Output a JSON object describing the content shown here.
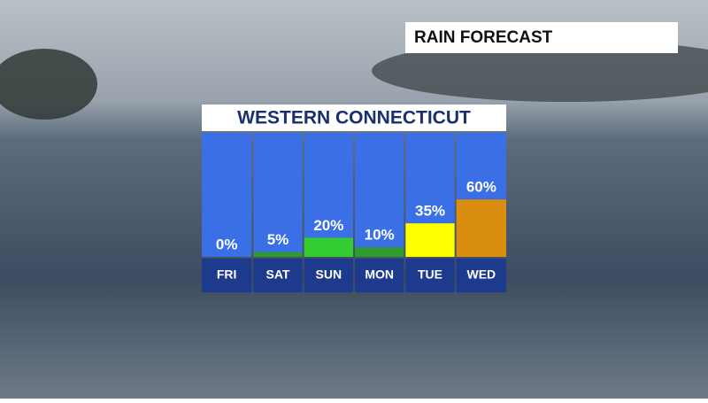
{
  "chart_data": {
    "type": "bar",
    "subtitle": "RAIN FORECAST",
    "title": "WESTERN CONNECTICUT",
    "categories": [
      "FRI",
      "SAT",
      "SUN",
      "MON",
      "TUE",
      "WED"
    ],
    "values": [
      0,
      5,
      20,
      10,
      35,
      60
    ],
    "value_labels": [
      "0%",
      "5%",
      "20%",
      "10%",
      "35%",
      "60%"
    ],
    "colors": [
      "#2e9b2e",
      "#2e9b2e",
      "#33cc33",
      "#2e9b2e",
      "#ffff00",
      "#d98e0f"
    ]
  }
}
